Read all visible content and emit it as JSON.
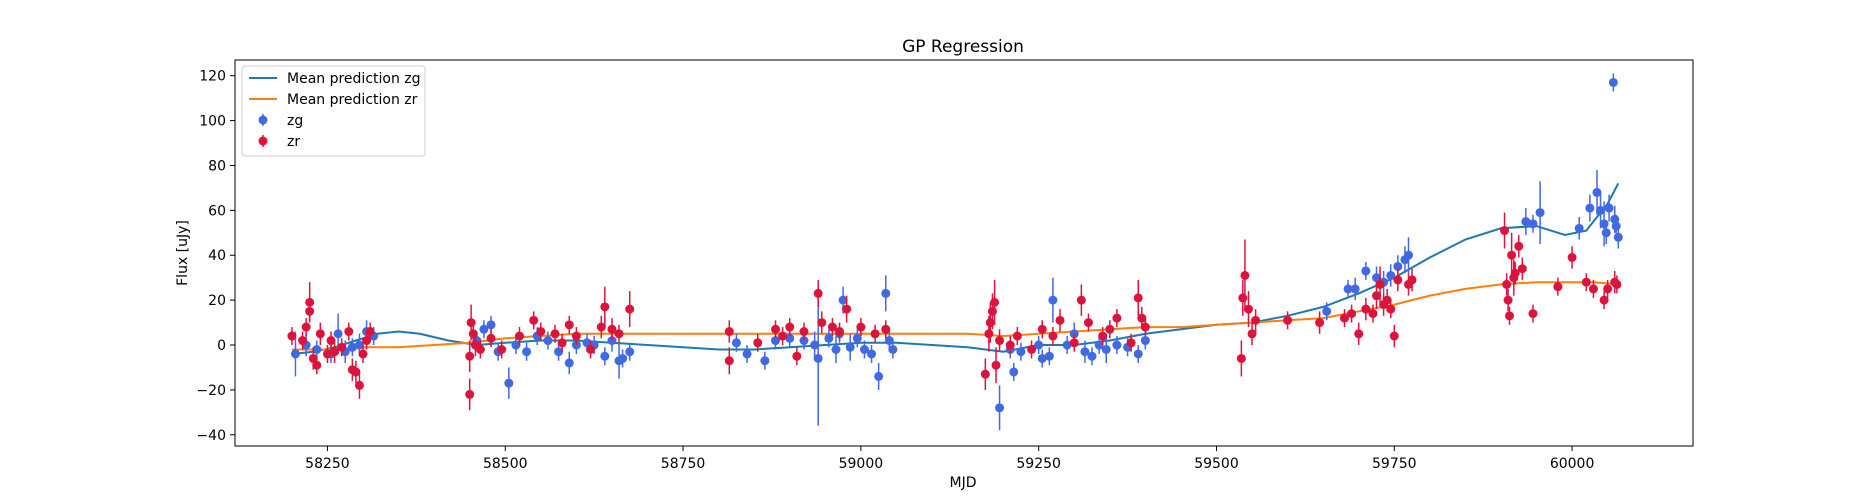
{
  "chart_data": {
    "type": "scatter",
    "title": "GP Regression",
    "xlabel": "MJD",
    "ylabel": "Flux [uJy]",
    "xlim": [
      58120,
      60170
    ],
    "ylim": [
      -45,
      127
    ],
    "x_ticks": [
      58250,
      58500,
      58750,
      59000,
      59250,
      59500,
      59750,
      60000
    ],
    "y_ticks": [
      -40,
      -20,
      0,
      20,
      40,
      60,
      80,
      100,
      120
    ],
    "grid": false,
    "legend_position": "top-left",
    "legend": [
      "Mean prediction zg",
      "Mean prediction zr",
      "zg",
      "zr"
    ],
    "colors": {
      "mean_zg": "#1f77b4",
      "mean_zr": "#ff7f0e",
      "zg": "#4169e1",
      "zr": "#dc143c"
    },
    "lines": [
      {
        "name": "Mean prediction zg",
        "color": "#1f77b4",
        "x": [
          58200,
          58230,
          58260,
          58290,
          58320,
          58350,
          58380,
          58420,
          58460,
          58500,
          58550,
          58600,
          58650,
          58700,
          58750,
          58800,
          58850,
          58900,
          58950,
          59000,
          59050,
          59100,
          59150,
          59200,
          59250,
          59300,
          59350,
          59400,
          59450,
          59500,
          59550,
          59600,
          59650,
          59700,
          59750,
          59800,
          59850,
          59900,
          59950,
          59990,
          60020,
          60050,
          60065
        ],
        "y": [
          -4,
          -3,
          -1,
          2,
          5,
          6,
          5,
          2,
          0,
          1,
          2,
          2,
          1,
          0,
          -1,
          -2,
          -2,
          -1,
          0,
          1,
          1,
          0,
          -1,
          -3,
          0,
          0,
          2,
          5,
          7,
          9,
          10,
          13,
          17,
          23,
          30,
          39,
          47,
          52,
          53,
          49,
          51,
          63,
          72
        ]
      },
      {
        "name": "Mean prediction zr",
        "color": "#ff7f0e",
        "x": [
          58200,
          58250,
          58300,
          58350,
          58400,
          58450,
          58500,
          58550,
          58600,
          58650,
          58700,
          58750,
          58800,
          58850,
          58900,
          58950,
          59000,
          59050,
          59100,
          59150,
          59200,
          59250,
          59300,
          59350,
          59400,
          59450,
          59500,
          59550,
          59600,
          59650,
          59700,
          59750,
          59800,
          59850,
          59900,
          59950,
          60000,
          60030,
          60065
        ],
        "y": [
          -2,
          -2,
          -1,
          -1,
          0,
          1,
          3,
          4,
          5,
          5,
          5,
          5,
          5,
          5,
          5,
          5,
          5,
          5,
          5,
          5,
          4,
          5,
          6,
          7,
          8,
          8,
          9,
          10,
          11,
          12,
          15,
          18,
          22,
          25,
          27,
          28,
          28,
          28,
          27
        ]
      }
    ],
    "series": [
      {
        "name": "zg",
        "color": "#4169e1",
        "points": [
          [
            58205,
            -4,
            10
          ],
          [
            58220,
            0,
            5
          ],
          [
            58235,
            -2,
            4
          ],
          [
            58255,
            -4,
            4
          ],
          [
            58265,
            5,
            9
          ],
          [
            58275,
            -3,
            5
          ],
          [
            58285,
            -1,
            4
          ],
          [
            58295,
            0,
            5
          ],
          [
            58305,
            6,
            5
          ],
          [
            58315,
            4,
            4
          ],
          [
            58460,
            2,
            4
          ],
          [
            58470,
            7,
            4
          ],
          [
            58480,
            9,
            4
          ],
          [
            58490,
            -3,
            4
          ],
          [
            58505,
            -17,
            7
          ],
          [
            58515,
            0,
            4
          ],
          [
            58530,
            -3,
            4
          ],
          [
            58545,
            4,
            4
          ],
          [
            58560,
            2,
            4
          ],
          [
            58575,
            -3,
            4
          ],
          [
            58590,
            -8,
            5
          ],
          [
            58600,
            0,
            4
          ],
          [
            58615,
            1,
            4
          ],
          [
            58625,
            0,
            4
          ],
          [
            58640,
            -5,
            4
          ],
          [
            58650,
            2,
            5
          ],
          [
            58660,
            -7,
            8
          ],
          [
            58665,
            -6,
            4
          ],
          [
            58675,
            -3,
            4
          ],
          [
            58825,
            1,
            4
          ],
          [
            58840,
            -4,
            4
          ],
          [
            58865,
            -7,
            4
          ],
          [
            58880,
            2,
            4
          ],
          [
            58900,
            3,
            4
          ],
          [
            58920,
            2,
            4
          ],
          [
            58935,
            0,
            6
          ],
          [
            58940,
            -6,
            30
          ],
          [
            58955,
            3,
            4
          ],
          [
            58965,
            -2,
            6
          ],
          [
            58970,
            5,
            4
          ],
          [
            58975,
            20,
            6
          ],
          [
            58985,
            -1,
            6
          ],
          [
            58995,
            3,
            4
          ],
          [
            59005,
            -2,
            4
          ],
          [
            59015,
            -4,
            4
          ],
          [
            59025,
            -14,
            6
          ],
          [
            59035,
            23,
            8
          ],
          [
            59040,
            2,
            5
          ],
          [
            59045,
            -2,
            4
          ],
          [
            59195,
            -28,
            10
          ],
          [
            59210,
            -2,
            4
          ],
          [
            59215,
            -12,
            4
          ],
          [
            59225,
            -3,
            4
          ],
          [
            59250,
            0,
            4
          ],
          [
            59255,
            -6,
            4
          ],
          [
            59265,
            -5,
            4
          ],
          [
            59270,
            20,
            10
          ],
          [
            59290,
            0,
            4
          ],
          [
            59300,
            5,
            5
          ],
          [
            59315,
            -3,
            5
          ],
          [
            59325,
            -5,
            4
          ],
          [
            59335,
            0,
            4
          ],
          [
            59345,
            -2,
            6
          ],
          [
            59360,
            0,
            4
          ],
          [
            59375,
            -1,
            4
          ],
          [
            59390,
            -4,
            4
          ],
          [
            59400,
            2,
            4
          ],
          [
            59655,
            15,
            4
          ],
          [
            59685,
            25,
            4
          ],
          [
            59695,
            25,
            5
          ],
          [
            59710,
            33,
            4
          ],
          [
            59725,
            30,
            5
          ],
          [
            59735,
            28,
            5
          ],
          [
            59745,
            31,
            5
          ],
          [
            59755,
            35,
            5
          ],
          [
            59765,
            38,
            6
          ],
          [
            59770,
            40,
            8
          ],
          [
            59935,
            55,
            6
          ],
          [
            59945,
            54,
            4
          ],
          [
            59955,
            59,
            14
          ],
          [
            60010,
            52,
            5
          ],
          [
            60025,
            61,
            6
          ],
          [
            60035,
            68,
            10
          ],
          [
            60040,
            60,
            8
          ],
          [
            60045,
            54,
            10
          ],
          [
            60048,
            50,
            5
          ],
          [
            60052,
            61,
            6
          ],
          [
            60058,
            117,
            4
          ],
          [
            60060,
            56,
            6
          ],
          [
            60062,
            53,
            5
          ],
          [
            60065,
            48,
            5
          ]
        ]
      },
      {
        "name": "zr",
        "color": "#dc143c",
        "points": [
          [
            58200,
            4,
            4
          ],
          [
            58215,
            2,
            4
          ],
          [
            58220,
            8,
            4
          ],
          [
            58225,
            19,
            9
          ],
          [
            58225,
            15,
            5
          ],
          [
            58230,
            -6,
            5
          ],
          [
            58235,
            -9,
            4
          ],
          [
            58240,
            5,
            5
          ],
          [
            58250,
            -4,
            4
          ],
          [
            58255,
            2,
            4
          ],
          [
            58260,
            -3,
            5
          ],
          [
            58270,
            -1,
            4
          ],
          [
            58280,
            6,
            4
          ],
          [
            58285,
            -11,
            5
          ],
          [
            58290,
            -12,
            5
          ],
          [
            58295,
            -18,
            6
          ],
          [
            58300,
            -4,
            4
          ],
          [
            58305,
            2,
            4
          ],
          [
            58310,
            6,
            4
          ],
          [
            58450,
            -22,
            7
          ],
          [
            58450,
            -5,
            7
          ],
          [
            58452,
            10,
            8
          ],
          [
            58455,
            5,
            5
          ],
          [
            58458,
            0,
            5
          ],
          [
            58465,
            -2,
            4
          ],
          [
            58480,
            3,
            4
          ],
          [
            58495,
            -2,
            4
          ],
          [
            58520,
            4,
            4
          ],
          [
            58540,
            11,
            4
          ],
          [
            58550,
            6,
            4
          ],
          [
            58570,
            5,
            4
          ],
          [
            58580,
            1,
            4
          ],
          [
            58590,
            9,
            4
          ],
          [
            58600,
            4,
            4
          ],
          [
            58620,
            -2,
            4
          ],
          [
            58635,
            8,
            5
          ],
          [
            58640,
            17,
            9
          ],
          [
            58650,
            7,
            5
          ],
          [
            58660,
            5,
            4
          ],
          [
            58675,
            16,
            8
          ],
          [
            58815,
            -7,
            6
          ],
          [
            58815,
            6,
            5
          ],
          [
            58855,
            1,
            4
          ],
          [
            58880,
            7,
            4
          ],
          [
            58890,
            4,
            4
          ],
          [
            58900,
            8,
            4
          ],
          [
            58910,
            -5,
            4
          ],
          [
            58920,
            6,
            4
          ],
          [
            58940,
            23,
            6
          ],
          [
            58945,
            10,
            5
          ],
          [
            58960,
            8,
            4
          ],
          [
            58970,
            6,
            4
          ],
          [
            58980,
            16,
            6
          ],
          [
            59000,
            8,
            4
          ],
          [
            59020,
            5,
            4
          ],
          [
            59035,
            7,
            4
          ],
          [
            59175,
            -13,
            7
          ],
          [
            59180,
            5,
            8
          ],
          [
            59182,
            10,
            9
          ],
          [
            59185,
            15,
            8
          ],
          [
            59188,
            19,
            10
          ],
          [
            59190,
            -9,
            8
          ],
          [
            59195,
            2,
            5
          ],
          [
            59210,
            0,
            4
          ],
          [
            59220,
            4,
            4
          ],
          [
            59240,
            -2,
            4
          ],
          [
            59255,
            7,
            4
          ],
          [
            59270,
            4,
            4
          ],
          [
            59280,
            11,
            5
          ],
          [
            59300,
            1,
            4
          ],
          [
            59310,
            20,
            7
          ],
          [
            59320,
            10,
            4
          ],
          [
            59340,
            4,
            4
          ],
          [
            59350,
            7,
            4
          ],
          [
            59360,
            12,
            4
          ],
          [
            59380,
            1,
            4
          ],
          [
            59390,
            21,
            8
          ],
          [
            59395,
            12,
            5
          ],
          [
            59400,
            8,
            4
          ],
          [
            59535,
            -6,
            8
          ],
          [
            59537,
            21,
            8
          ],
          [
            59540,
            31,
            16
          ],
          [
            59545,
            16,
            8
          ],
          [
            59550,
            5,
            5
          ],
          [
            59555,
            11,
            5
          ],
          [
            59600,
            11,
            4
          ],
          [
            59645,
            10,
            5
          ],
          [
            59680,
            12,
            4
          ],
          [
            59690,
            14,
            4
          ],
          [
            59700,
            5,
            5
          ],
          [
            59710,
            16,
            5
          ],
          [
            59720,
            14,
            4
          ],
          [
            59725,
            22,
            6
          ],
          [
            59730,
            27,
            8
          ],
          [
            59735,
            18,
            5
          ],
          [
            59740,
            20,
            5
          ],
          [
            59745,
            16,
            4
          ],
          [
            59750,
            4,
            5
          ],
          [
            59755,
            29,
            5
          ],
          [
            59770,
            27,
            5
          ],
          [
            59775,
            29,
            5
          ],
          [
            59905,
            51,
            8
          ],
          [
            59908,
            27,
            5
          ],
          [
            59910,
            20,
            5
          ],
          [
            59912,
            13,
            4
          ],
          [
            59915,
            40,
            10
          ],
          [
            59918,
            30,
            8
          ],
          [
            59920,
            32,
            5
          ],
          [
            59925,
            44,
            5
          ],
          [
            59930,
            34,
            5
          ],
          [
            59945,
            14,
            4
          ],
          [
            59980,
            26,
            4
          ],
          [
            60000,
            39,
            5
          ],
          [
            60020,
            28,
            4
          ],
          [
            60030,
            25,
            4
          ],
          [
            60045,
            20,
            4
          ],
          [
            60050,
            25,
            4
          ],
          [
            60060,
            28,
            5
          ],
          [
            60063,
            27,
            4
          ]
        ]
      }
    ]
  }
}
